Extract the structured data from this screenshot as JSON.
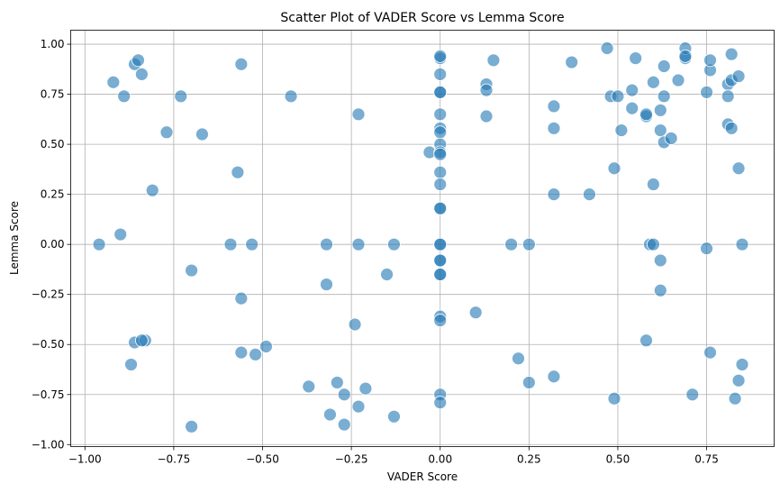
{
  "chart_data": {
    "type": "scatter",
    "title": "Scatter Plot of VADER Score vs Lemma Score",
    "xlabel": "VADER Score",
    "ylabel": "Lemma Score",
    "xlim": [
      -1.04,
      0.94
    ],
    "ylim": [
      -1.01,
      1.07
    ],
    "xticks": [
      -1.0,
      -0.75,
      -0.5,
      -0.25,
      0.0,
      0.25,
      0.5,
      0.75
    ],
    "xtick_labels": [
      "−1.00",
      "−0.75",
      "−0.50",
      "−0.25",
      "0.00",
      "0.25",
      "0.50",
      "0.75"
    ],
    "yticks": [
      -1.0,
      -0.75,
      -0.5,
      -0.25,
      0.0,
      0.25,
      0.5,
      0.75,
      1.0
    ],
    "ytick_labels": [
      "−1.00",
      "−0.75",
      "−0.50",
      "−0.25",
      "0.00",
      "0.25",
      "0.50",
      "0.75",
      "1.00"
    ],
    "grid": true,
    "point_color": "#1f77b4",
    "point_alpha": 0.6,
    "points": [
      [
        -0.96,
        0.0
      ],
      [
        -0.92,
        0.81
      ],
      [
        -0.9,
        0.05
      ],
      [
        -0.89,
        0.74
      ],
      [
        -0.86,
        0.9
      ],
      [
        -0.85,
        0.92
      ],
      [
        -0.84,
        0.85
      ],
      [
        -0.81,
        0.27
      ],
      [
        -0.77,
        0.56
      ],
      [
        -0.73,
        0.74
      ],
      [
        -0.7,
        -0.13
      ],
      [
        -0.7,
        -0.91
      ],
      [
        -0.67,
        0.55
      ],
      [
        -0.57,
        0.36
      ],
      [
        -0.56,
        0.9
      ],
      [
        -0.56,
        -0.27
      ],
      [
        -0.56,
        -0.54
      ],
      [
        -0.59,
        0.0
      ],
      [
        -0.53,
        0.0
      ],
      [
        -0.52,
        -0.55
      ],
      [
        -0.49,
        -0.51
      ],
      [
        -0.86,
        -0.49
      ],
      [
        -0.83,
        -0.48
      ],
      [
        -0.84,
        -0.48
      ],
      [
        -0.87,
        -0.6
      ],
      [
        -0.42,
        0.74
      ],
      [
        -0.37,
        -0.71
      ],
      [
        -0.32,
        0.0
      ],
      [
        -0.32,
        -0.2
      ],
      [
        -0.31,
        -0.85
      ],
      [
        -0.29,
        -0.69
      ],
      [
        -0.27,
        -0.75
      ],
      [
        -0.27,
        -0.9
      ],
      [
        -0.24,
        -0.4
      ],
      [
        -0.23,
        -0.81
      ],
      [
        -0.23,
        0.65
      ],
      [
        -0.23,
        0.0
      ],
      [
        -0.21,
        -0.72
      ],
      [
        -0.13,
        0.0
      ],
      [
        -0.13,
        -0.86
      ],
      [
        -0.15,
        -0.15
      ],
      [
        -0.03,
        0.46
      ],
      [
        0.0,
        0.93
      ],
      [
        0.0,
        0.94
      ],
      [
        0.0,
        0.85
      ],
      [
        0.0,
        0.76
      ],
      [
        0.0,
        0.76
      ],
      [
        0.0,
        0.65
      ],
      [
        0.0,
        0.58
      ],
      [
        0.0,
        0.56
      ],
      [
        0.0,
        0.5
      ],
      [
        0.0,
        0.46
      ],
      [
        0.0,
        0.45
      ],
      [
        0.0,
        0.36
      ],
      [
        0.0,
        0.3
      ],
      [
        0.0,
        0.18
      ],
      [
        0.0,
        0.18
      ],
      [
        0.0,
        0.0
      ],
      [
        0.0,
        0.0
      ],
      [
        0.0,
        -0.08
      ],
      [
        0.0,
        -0.08
      ],
      [
        0.0,
        -0.15
      ],
      [
        0.0,
        -0.15
      ],
      [
        0.0,
        -0.36
      ],
      [
        0.0,
        -0.38
      ],
      [
        0.0,
        -0.75
      ],
      [
        0.0,
        -0.79
      ],
      [
        0.1,
        -0.34
      ],
      [
        0.13,
        0.8
      ],
      [
        0.13,
        0.77
      ],
      [
        0.13,
        0.64
      ],
      [
        0.15,
        0.92
      ],
      [
        0.2,
        0.0
      ],
      [
        0.22,
        -0.57
      ],
      [
        0.25,
        0.0
      ],
      [
        0.25,
        -0.69
      ],
      [
        0.32,
        0.69
      ],
      [
        0.32,
        0.58
      ],
      [
        0.32,
        0.25
      ],
      [
        0.32,
        -0.66
      ],
      [
        0.37,
        0.91
      ],
      [
        0.42,
        0.25
      ],
      [
        0.47,
        0.98
      ],
      [
        0.48,
        0.74
      ],
      [
        0.49,
        0.38
      ],
      [
        0.5,
        0.74
      ],
      [
        0.49,
        -0.77
      ],
      [
        0.51,
        0.57
      ],
      [
        0.54,
        0.77
      ],
      [
        0.54,
        0.68
      ],
      [
        0.55,
        0.93
      ],
      [
        0.58,
        0.64
      ],
      [
        0.58,
        0.65
      ],
      [
        0.58,
        -0.48
      ],
      [
        0.59,
        0.0
      ],
      [
        0.6,
        0.0
      ],
      [
        0.6,
        0.81
      ],
      [
        0.6,
        0.3
      ],
      [
        0.62,
        0.67
      ],
      [
        0.62,
        0.57
      ],
      [
        0.62,
        -0.08
      ],
      [
        0.62,
        -0.23
      ],
      [
        0.63,
        0.89
      ],
      [
        0.63,
        0.74
      ],
      [
        0.63,
        0.51
      ],
      [
        0.65,
        0.53
      ],
      [
        0.67,
        0.82
      ],
      [
        0.69,
        0.93
      ],
      [
        0.69,
        0.98
      ],
      [
        0.69,
        0.94
      ],
      [
        0.71,
        -0.75
      ],
      [
        0.75,
        0.76
      ],
      [
        0.75,
        -0.02
      ],
      [
        0.76,
        0.87
      ],
      [
        0.76,
        0.92
      ],
      [
        0.76,
        -0.54
      ],
      [
        0.81,
        0.8
      ],
      [
        0.81,
        0.74
      ],
      [
        0.81,
        0.6
      ],
      [
        0.82,
        0.95
      ],
      [
        0.82,
        0.58
      ],
      [
        0.82,
        0.82
      ],
      [
        0.83,
        -0.77
      ],
      [
        0.84,
        0.84
      ],
      [
        0.84,
        0.38
      ],
      [
        0.84,
        -0.68
      ],
      [
        0.85,
        0.0
      ],
      [
        0.85,
        -0.6
      ]
    ]
  }
}
